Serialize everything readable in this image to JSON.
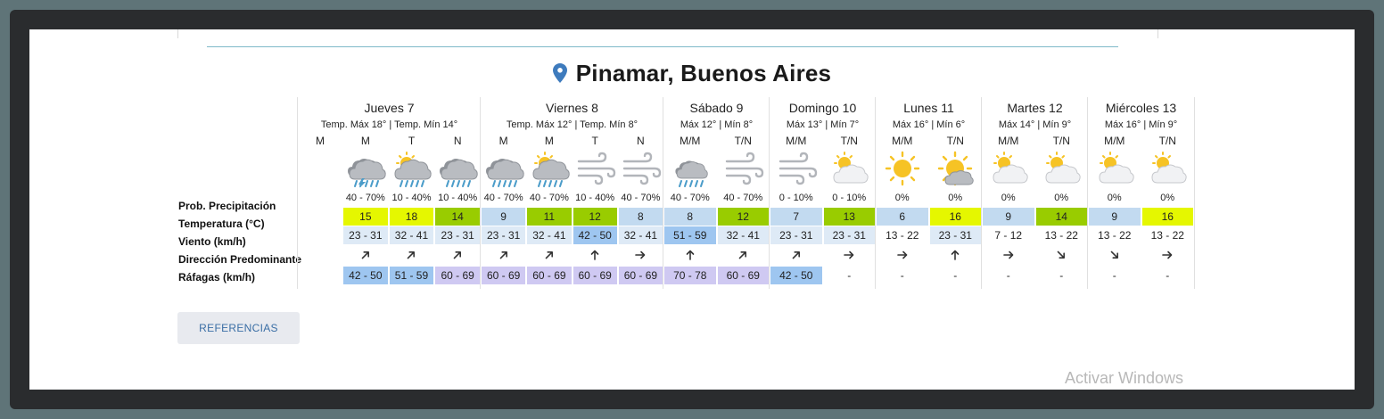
{
  "location": {
    "title": "Pinamar, Buenos Aires",
    "pin_color": "#3e7bbd"
  },
  "row_labels": [
    "Prob. Precipitación",
    "Temperatura (°C)",
    "Viento (km/h)",
    "Dirección Predominante",
    "Ráfagas (km/h)"
  ],
  "days": [
    {
      "name": "Jueves 7",
      "temps": "Temp. Máx 18° | Temp. Mín 14°",
      "columns": [
        {
          "label": "M",
          "icon": "",
          "prob": "",
          "temp": "",
          "wind": "",
          "dir": "",
          "gust": ""
        },
        {
          "label": "M",
          "icon": "storm-rain",
          "prob": "40 - 70%",
          "temp": "15",
          "wind": "23 - 31",
          "dir": "NE",
          "gust": "42 - 50"
        },
        {
          "label": "T",
          "icon": "sun-cloud-rain",
          "prob": "10 - 40%",
          "temp": "18",
          "wind": "32 - 41",
          "dir": "NE",
          "gust": "51 - 59"
        },
        {
          "label": "N",
          "icon": "cloud-rain",
          "prob": "10 - 40%",
          "temp": "14",
          "wind": "23 - 31",
          "dir": "NE",
          "gust": "60 - 69"
        }
      ]
    },
    {
      "name": "Viernes 8",
      "temps": "Temp. Máx 12° | Temp. Mín 8°",
      "columns": [
        {
          "label": "M",
          "icon": "cloud-rain",
          "prob": "40 - 70%",
          "temp": "9",
          "wind": "23 - 31",
          "dir": "NE",
          "gust": "60 - 69"
        },
        {
          "label": "M",
          "icon": "sun-cloud-rain",
          "prob": "40 - 70%",
          "temp": "11",
          "wind": "32 - 41",
          "dir": "NE",
          "gust": "60 - 69"
        },
        {
          "label": "T",
          "icon": "wind",
          "prob": "10 - 40%",
          "temp": "12",
          "wind": "42 - 50",
          "dir": "N",
          "gust": "60 - 69"
        },
        {
          "label": "N",
          "icon": "wind",
          "prob": "40 - 70%",
          "temp": "8",
          "wind": "32 - 41",
          "dir": "E",
          "gust": "60 - 69"
        }
      ]
    },
    {
      "name": "Sábado 9",
      "temps": "Máx 12° | Mín 8°",
      "columns": [
        {
          "label": "M/M",
          "icon": "cloud-rain-small",
          "prob": "40 - 70%",
          "temp": "8",
          "wind": "51 - 59",
          "dir": "N",
          "gust": "70 - 78"
        },
        {
          "label": "T/N",
          "icon": "wind",
          "prob": "40 - 70%",
          "temp": "12",
          "wind": "32 - 41",
          "dir": "NE",
          "gust": "60 - 69"
        }
      ]
    },
    {
      "name": "Domingo 10",
      "temps": "Máx 13° | Mín 7°",
      "columns": [
        {
          "label": "M/M",
          "icon": "wind",
          "prob": "0 - 10%",
          "temp": "7",
          "wind": "23 - 31",
          "dir": "NE",
          "gust": "42 - 50"
        },
        {
          "label": "T/N",
          "icon": "partly-cloudy",
          "prob": "0 - 10%",
          "temp": "13",
          "wind": "23 - 31",
          "dir": "E",
          "gust": "-"
        }
      ]
    },
    {
      "name": "Lunes 11",
      "temps": "Máx 16° | Mín 6°",
      "columns": [
        {
          "label": "M/M",
          "icon": "sun",
          "prob": "0%",
          "temp": "6",
          "wind": "13 - 22",
          "dir": "E",
          "gust": "-"
        },
        {
          "label": "T/N",
          "icon": "sun-cloud",
          "prob": "0%",
          "temp": "16",
          "wind": "23 - 31",
          "dir": "N",
          "gust": "-"
        }
      ]
    },
    {
      "name": "Martes 12",
      "temps": "Máx 14° | Mín 9°",
      "columns": [
        {
          "label": "M/M",
          "icon": "partly-cloudy",
          "prob": "0%",
          "temp": "9",
          "wind": "7 - 12",
          "dir": "E",
          "gust": "-"
        },
        {
          "label": "T/N",
          "icon": "partly-cloudy",
          "prob": "0%",
          "temp": "14",
          "wind": "13 - 22",
          "dir": "SE",
          "gust": "-"
        }
      ]
    },
    {
      "name": "Miércoles 13",
      "temps": "Máx 16° | Mín 9°",
      "columns": [
        {
          "label": "M/M",
          "icon": "partly-cloudy",
          "prob": "0%",
          "temp": "9",
          "wind": "13 - 22",
          "dir": "SE",
          "gust": "-"
        },
        {
          "label": "T/N",
          "icon": "partly-cloudy",
          "prob": "0%",
          "temp": "16",
          "wind": "13 - 22",
          "dir": "E",
          "gust": "-"
        }
      ]
    }
  ],
  "colors": {
    "temp": {
      "6": "#c2daf0",
      "7": "#c2daf0",
      "8": "#c2daf0",
      "9": "#c2daf0",
      "11": "#99cc00",
      "12": "#99cc00",
      "13": "#99cc00",
      "14": "#99cc00",
      "15": "#e5f700",
      "16": "#e5f700",
      "18": "#e5f700"
    },
    "wind": {
      "7 - 12": "#ffffff",
      "13 - 22": "#ffffff",
      "23 - 31": "#deeaf6",
      "32 - 41": "#deeaf6",
      "42 - 50": "#9ec6f0",
      "51 - 59": "#9ec6f0"
    },
    "gust": {
      "42 - 50": "#9ec6f0",
      "51 - 59": "#9ec6f0",
      "60 - 69": "#cfc9f2",
      "70 - 78": "#cfc9f2",
      "-": "#ffffff"
    }
  },
  "references_button": "REFERENCIAS",
  "watermark": "Activar Windows"
}
